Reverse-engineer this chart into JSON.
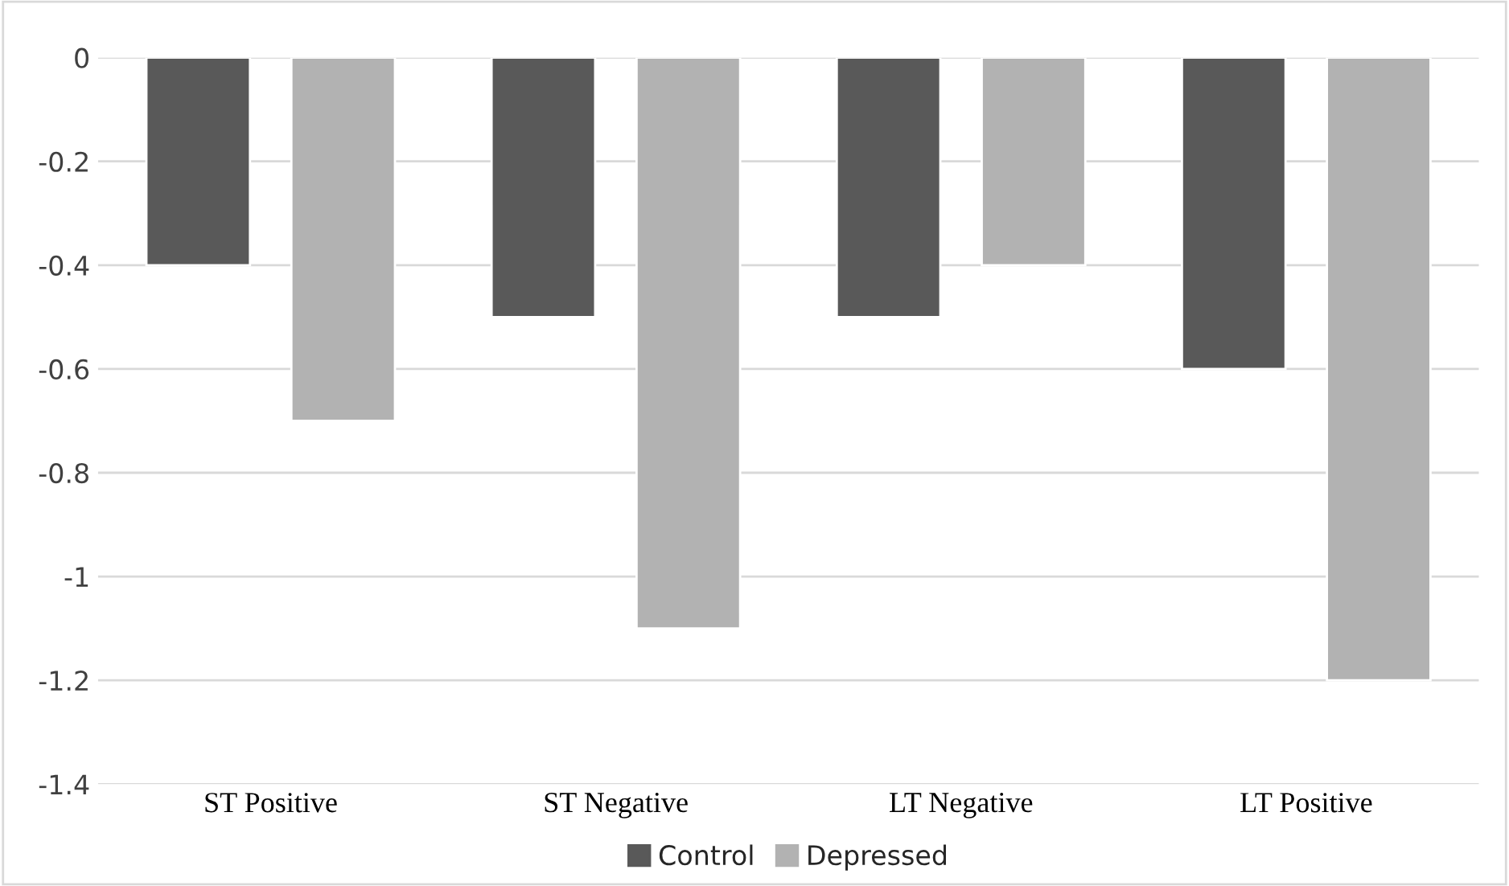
{
  "chart_data": {
    "type": "bar",
    "categories": [
      "ST Positive",
      "ST Negative",
      "LT Negative",
      "LT Positive"
    ],
    "series": [
      {
        "name": "Control",
        "color": "#595959",
        "values": [
          -0.4,
          -0.5,
          -0.5,
          -0.6
        ]
      },
      {
        "name": "Depressed",
        "color": "#b2b2b2",
        "values": [
          -0.7,
          -1.1,
          -0.4,
          -1.2
        ]
      }
    ],
    "ylim": [
      -1.4,
      0
    ],
    "yticks": [
      0,
      -0.2,
      -0.4,
      -0.6,
      -0.8,
      -1,
      -1.2,
      -1.4
    ],
    "grid": "y",
    "legend": "bottom"
  }
}
